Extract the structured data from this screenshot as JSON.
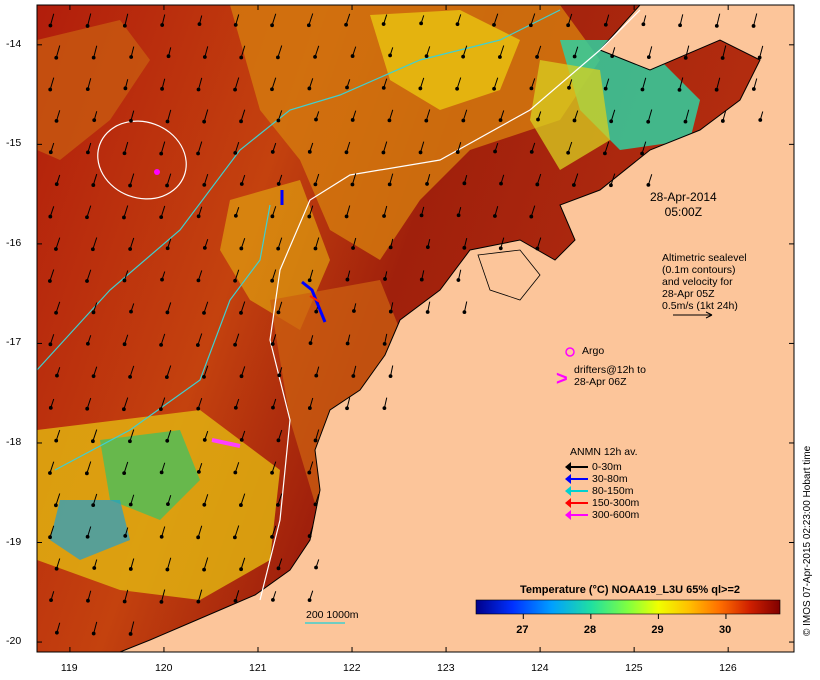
{
  "map": {
    "lat_ticks": [
      "-14",
      "-15",
      "-16",
      "-17",
      "-18",
      "-19",
      "-20"
    ],
    "lon_ticks": [
      "119",
      "120",
      "121",
      "122",
      "123",
      "124",
      "125",
      "126"
    ],
    "lat_range": [
      -20.1,
      -13.6
    ],
    "lon_range": [
      118.65,
      126.7
    ]
  },
  "annotations": {
    "date": "28-Apr-2014",
    "time": "05:00Z",
    "altimetric": [
      "Altimetric sealevel",
      "(0.1m contours)",
      "and velocity for",
      "28-Apr 05Z",
      "0.5m/s (1kt 24h)"
    ],
    "argo_label": "Argo",
    "drifter_label": [
      "drifters@12h to",
      "28-Apr 06Z"
    ],
    "isobath_label": "200 1000m"
  },
  "anmn_legend": {
    "title": "ANMN 12h av.",
    "items": [
      {
        "label": "0-30m",
        "color": "#000000"
      },
      {
        "label": "30-80m",
        "color": "#0000ff"
      },
      {
        "label": "80-150m",
        "color": "#00d0d0"
      },
      {
        "label": "150-300m",
        "color": "#ff0000"
      },
      {
        "label": "300-600m",
        "color": "#ff00ff"
      }
    ]
  },
  "colorbar": {
    "title": "Temperature (°C) NOAA19_L3U 65% ql>=2",
    "range": [
      26.3,
      30.8
    ],
    "ticks": [
      27,
      28,
      29,
      30
    ],
    "tick_labels": [
      "27",
      "28",
      "29",
      "30"
    ]
  },
  "credit": "© IMOS 07-Apr-2015 02:23:00 Hobart time",
  "colors": {
    "land": "#fcc59a",
    "warm": "#a0180c",
    "mid": "#cc5a10",
    "isobath_200": "#40d0d0",
    "isobath_1000": "#ffffff"
  }
}
